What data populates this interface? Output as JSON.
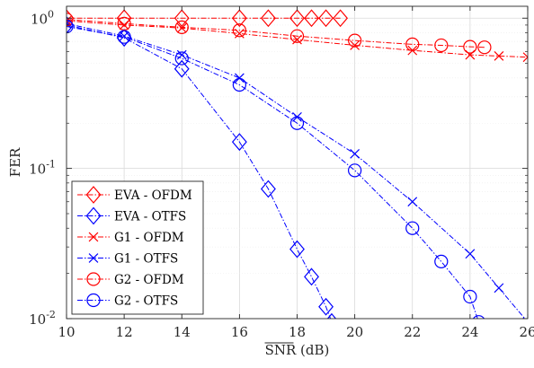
{
  "chart_data": {
    "type": "line",
    "xlabel": "SNR (dB)",
    "ylabel": "FER",
    "xlim": [
      10,
      26
    ],
    "ylim": [
      0.01,
      1.2
    ],
    "y_scale": "log",
    "grid": true,
    "legend_position": "bottom-left",
    "x_ticks": [
      "10",
      "12",
      "14",
      "16",
      "18",
      "20",
      "22",
      "24",
      "26"
    ],
    "y_ticks": [
      {
        "value": 1,
        "base": "10",
        "exp": "0"
      },
      {
        "value": 0.1,
        "base": "10",
        "exp": "-1"
      },
      {
        "value": 0.01,
        "base": "10",
        "exp": "-2"
      }
    ],
    "series": [
      {
        "name": "EVA - OFDM",
        "color": "#ff0000",
        "marker": "diamond",
        "dash": "6 2 1.5 2",
        "x": [
          10,
          12,
          14,
          16,
          17,
          18,
          18.5,
          19,
          19.5
        ],
        "y": [
          1,
          1,
          1,
          1,
          1,
          1,
          1,
          1,
          1
        ]
      },
      {
        "name": "EVA - OTFS",
        "color": "#0000ff",
        "marker": "diamond",
        "dash": "6 2 1.5 2",
        "x": [
          10,
          12,
          14,
          16,
          17,
          18,
          18.5,
          19,
          19.2
        ],
        "y": [
          0.9,
          0.74,
          0.46,
          0.15,
          0.073,
          0.029,
          0.019,
          0.012,
          0.0095
        ]
      },
      {
        "name": "G1 - OFDM",
        "color": "#ff0000",
        "marker": "x",
        "dash": "6 2 1.5 2",
        "x": [
          10,
          12,
          14,
          16,
          18,
          20,
          22,
          24,
          25,
          26
        ],
        "y": [
          0.96,
          0.9,
          0.86,
          0.79,
          0.72,
          0.66,
          0.61,
          0.57,
          0.56,
          0.55
        ]
      },
      {
        "name": "G1 - OTFS",
        "color": "#0000ff",
        "marker": "x",
        "dash": "6 2 1.5 2",
        "x": [
          10,
          12,
          14,
          16,
          18,
          20,
          22,
          24,
          25,
          26
        ],
        "y": [
          0.92,
          0.76,
          0.57,
          0.4,
          0.22,
          0.125,
          0.06,
          0.027,
          0.016,
          0.0095
        ]
      },
      {
        "name": "G2 - OFDM",
        "color": "#ff0000",
        "marker": "circle",
        "dash": "6 2 1.5 2",
        "x": [
          10,
          12,
          14,
          16,
          18,
          20,
          22,
          23,
          24,
          24.5
        ],
        "y": [
          0.98,
          0.92,
          0.87,
          0.83,
          0.76,
          0.71,
          0.67,
          0.66,
          0.645,
          0.64
        ]
      },
      {
        "name": "G2 - OTFS",
        "color": "#0000ff",
        "marker": "circle",
        "dash": "6 2 1.5 2",
        "x": [
          10,
          12,
          14,
          16,
          18,
          20,
          22,
          23,
          24,
          24.3
        ],
        "y": [
          0.88,
          0.75,
          0.54,
          0.36,
          0.2,
          0.097,
          0.04,
          0.024,
          0.014,
          0.0095
        ]
      }
    ]
  }
}
